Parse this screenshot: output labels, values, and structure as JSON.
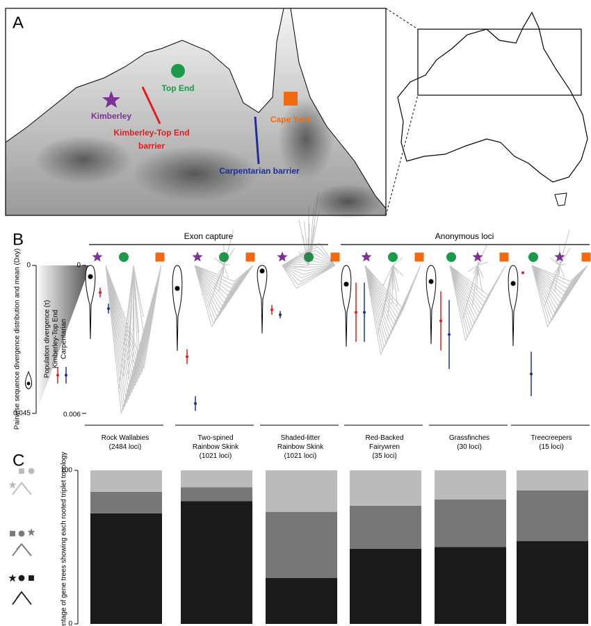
{
  "panel_labels": [
    "A",
    "B",
    "C"
  ],
  "map": {
    "labels": {
      "top_end": "Top End",
      "kimberley": "Kimberley",
      "kt_barrier_1": "Kimberley-Top End",
      "kt_barrier_2": "barrier",
      "cape_york": "Cape York",
      "carp_barrier": "Carpentarian barrier"
    }
  },
  "groups": [
    "Exon capture",
    "Anonymous loci"
  ],
  "chart_data": [
    {
      "type": "dot",
      "ylabel": "Pairwise sequence divergence distribution and mean (Dxy)",
      "y2label": "Population divergence (τ)",
      "ylim": [
        0,
        0.045
      ],
      "yticks": [
        0,
        0.045
      ],
      "y2lim": [
        0,
        0.006
      ],
      "y2ticks": [
        0,
        0.006
      ],
      "series": [
        {
          "name": "Pairwise sequence divergence distribution and mean (Dxy)",
          "color": "#000000",
          "values": [
            0.0034,
            0.007,
            0.0017,
            0.0057,
            0.0049,
            0.0055
          ]
        },
        {
          "name": "Kimberley-Top End",
          "color": "#e41a1c",
          "axis": "y2",
          "values": [
            0.0011,
            0.0037,
            0.0018,
            0.0019,
            0.00225,
            0.0003
          ],
          "errors": [
            0.0002,
            0.0003,
            0.0002,
            0.0012,
            0.0012,
            5e-05
          ]
        },
        {
          "name": "Carpentarian",
          "color": "#1f2f8f",
          "axis": "y2",
          "values": [
            0.00175,
            0.0056,
            0.002,
            0.0019,
            0.0028,
            0.0044
          ],
          "errors": [
            0.0002,
            0.0003,
            0.00015,
            0.0012,
            0.0014,
            0.0009
          ]
        }
      ]
    },
    {
      "type": "stacked_bar",
      "ylabel": "Percentage of gene trees showing each rooted triplet topology",
      "categories": [
        "Rock Wallabies\n(2484 loci)",
        "Two-spined\nRainbow Skink\n(1021 loci)",
        "Shaded-litter\nRainbow Skink\n(1021 loci)",
        "Red-Backed\nFairywren\n(35 loci)",
        "Grassfinches\n(30 loci)",
        "Treecreepers\n(15 loci)"
      ],
      "ylim": [
        0,
        100
      ],
      "yticks": [
        0,
        100
      ],
      "series": [
        {
          "color": "#1a1a1a",
          "values": [
            72,
            80,
            30,
            49,
            50,
            54
          ]
        },
        {
          "color": "#777777",
          "values": [
            14,
            9,
            43,
            28,
            31,
            33
          ]
        },
        {
          "color": "#bbbbbb",
          "values": [
            14,
            11,
            27,
            23,
            19,
            13
          ]
        }
      ]
    }
  ]
}
